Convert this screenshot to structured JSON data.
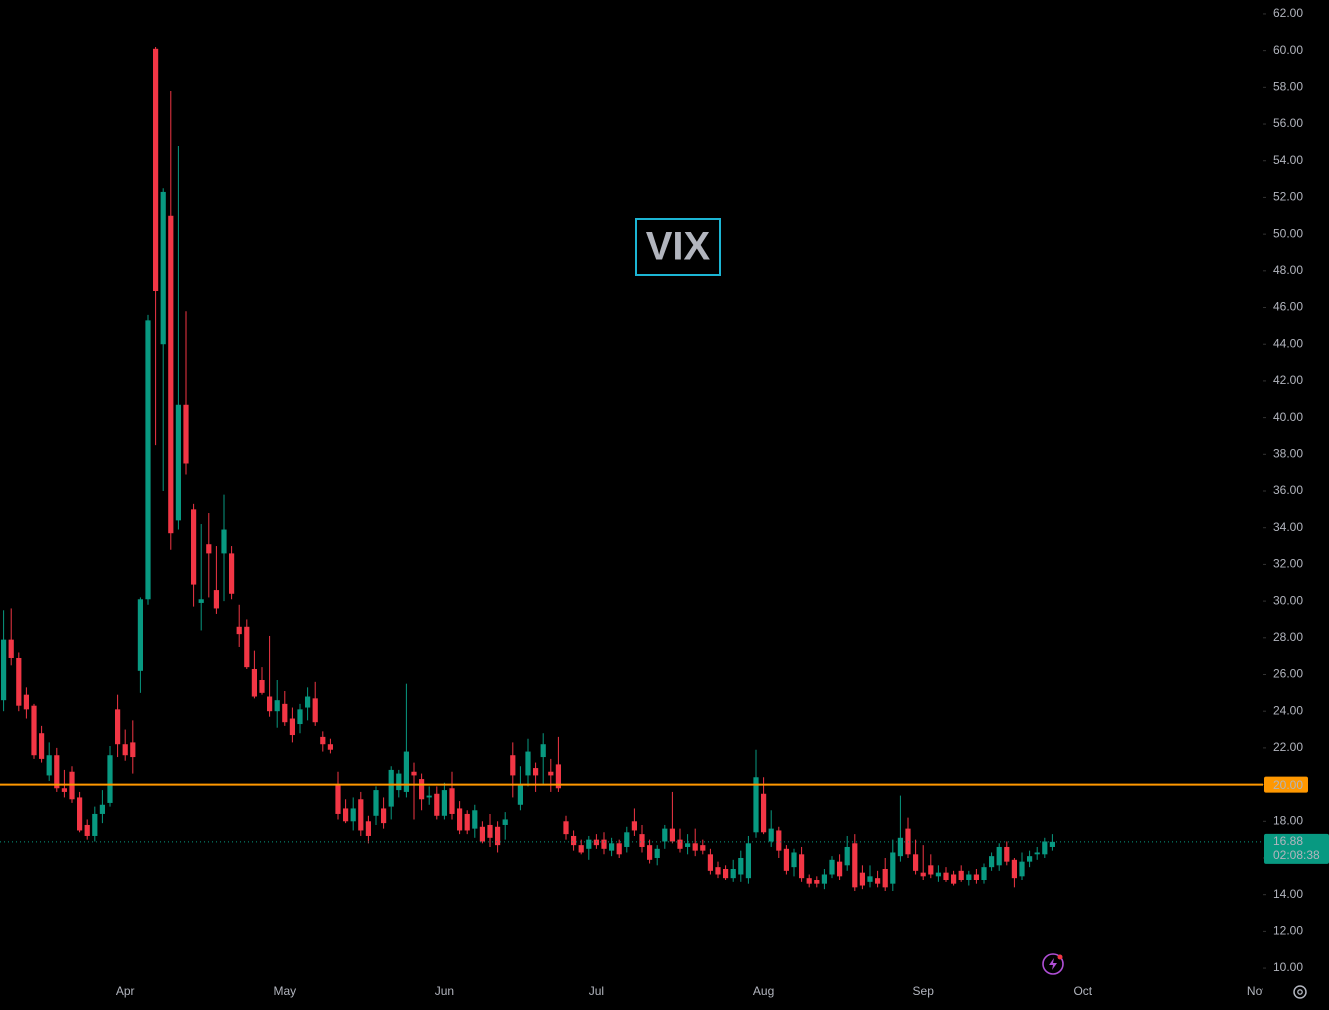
{
  "chart_data": {
    "type": "candlestick",
    "title": "VIX",
    "title_color": "#1cb5d4",
    "up_color": "#089981",
    "down_color": "#f23645",
    "categories": [
      null,
      null,
      null,
      null,
      null,
      null,
      null,
      null,
      null,
      null,
      null,
      null,
      null,
      null,
      null,
      null,
      null,
      "Apr",
      null,
      null,
      null,
      null,
      null,
      null,
      null,
      null,
      null,
      null,
      null,
      null,
      null,
      null,
      null,
      null,
      null,
      null,
      null,
      null,
      "May",
      null,
      null,
      null,
      null,
      null,
      null,
      null,
      null,
      null,
      null,
      null,
      null,
      null,
      null,
      null,
      null,
      null,
      null,
      null,
      null,
      "Jun",
      null,
      null,
      null,
      null,
      null,
      null,
      null,
      null,
      null,
      null,
      null,
      null,
      null,
      null,
      null,
      null,
      null,
      null,
      null,
      "Jul",
      null,
      null,
      null,
      null,
      null,
      null,
      null,
      null,
      null,
      null,
      null,
      null,
      null,
      null,
      null,
      null,
      null,
      null,
      null,
      null,
      null,
      "Aug",
      null,
      null,
      null,
      null,
      null,
      null,
      null,
      null,
      null,
      null,
      null,
      null,
      null,
      null,
      null,
      null,
      null,
      null,
      null,
      null,
      "Sep",
      null,
      null,
      null,
      null,
      null,
      null,
      null,
      null,
      null,
      null,
      null,
      null,
      null,
      null,
      null,
      null,
      null,
      null,
      null,
      null,
      "Oct",
      null,
      null,
      null,
      null,
      null,
      null,
      null,
      null,
      null,
      null,
      null,
      null,
      null,
      null,
      null,
      null,
      null,
      null,
      null,
      null,
      null,
      null,
      "Nov"
    ],
    "open": [
      24.9,
      24.6,
      27.9,
      26.9,
      24.9,
      24.3,
      22.8,
      20.5,
      21.6,
      19.8,
      20.7,
      19.3,
      17.8,
      17.2,
      18.4,
      19.0,
      24.1,
      22.2,
      22.3,
      26.2,
      30.1,
      60.1,
      44.0,
      51.0,
      34.4,
      40.7,
      35.0,
      29.9,
      33.1,
      30.6,
      32.6,
      32.6,
      28.6,
      28.6,
      26.3,
      25.7,
      24.8,
      24.0,
      24.4,
      23.6,
      23.3,
      24.2,
      24.7,
      22.6,
      22.2,
      20.0,
      18.7,
      18.0,
      19.2,
      18.0,
      18.3,
      18.7,
      18.8,
      19.7,
      19.6,
      20.7,
      20.3,
      19.3,
      19.5,
      18.3,
      19.8,
      18.7,
      18.4,
      17.6,
      17.7,
      17.8,
      17.7,
      17.8,
      21.6,
      18.9,
      20.5,
      20.9,
      21.5,
      20.7,
      21.1,
      18.0,
      17.2,
      16.7,
      16.5,
      17.0,
      17.0,
      16.4,
      16.8,
      16.6,
      18.0,
      17.3,
      16.7,
      16.0,
      16.9,
      17.6,
      17.0,
      16.6,
      16.8,
      16.7,
      16.2,
      15.5,
      15.4,
      14.9,
      15.1,
      14.9,
      17.4,
      19.5,
      16.9,
      17.5,
      16.5,
      15.5,
      16.2,
      14.9,
      14.8,
      14.6,
      15.1,
      15.8,
      15.6,
      16.8,
      15.2,
      14.7,
      14.9,
      15.4,
      14.6,
      16.1,
      17.6,
      16.2,
      15.2,
      15.6,
      15.0,
      15.2,
      15.1,
      15.3,
      14.8,
      15.1,
      14.8,
      15.5,
      15.6,
      16.6,
      15.9,
      15.0,
      15.8,
      16.2,
      16.2,
      16.6,
      null,
      null,
      null,
      null,
      null,
      null,
      null,
      null,
      null,
      null,
      null,
      null,
      null,
      null,
      null,
      null,
      null,
      null,
      null,
      null,
      null,
      null,
      null,
      null,
      null,
      null,
      null
    ],
    "high": [
      25.5,
      29.5,
      29.6,
      27.2,
      25.3,
      24.4,
      23.2,
      22.3,
      22.0,
      20.8,
      21.0,
      19.6,
      18.1,
      18.8,
      19.7,
      22.1,
      24.9,
      23.0,
      23.5,
      30.2,
      45.6,
      60.2,
      52.5,
      57.8,
      54.8,
      45.8,
      35.3,
      34.2,
      34.8,
      33.0,
      35.8,
      33.0,
      29.8,
      29.0,
      27.3,
      26.4,
      28.1,
      25.7,
      25.1,
      24.2,
      24.4,
      25.3,
      25.6,
      22.9,
      22.5,
      20.7,
      19.2,
      19.3,
      19.6,
      18.3,
      19.9,
      19.3,
      21.0,
      20.8,
      25.5,
      21.2,
      20.6,
      19.9,
      19.9,
      20.1,
      20.7,
      19.1,
      18.6,
      18.9,
      18.0,
      18.4,
      18.0,
      18.5,
      22.3,
      21.0,
      22.5,
      21.2,
      22.8,
      21.4,
      22.6,
      18.3,
      17.5,
      17.0,
      17.2,
      17.3,
      17.4,
      17.1,
      17.0,
      17.7,
      18.7,
      17.8,
      17.0,
      16.7,
      17.8,
      19.6,
      17.6,
      17.3,
      17.6,
      17.0,
      16.5,
      15.8,
      15.6,
      15.9,
      16.4,
      17.2,
      21.9,
      20.4,
      18.6,
      17.7,
      16.7,
      16.5,
      16.6,
      15.1,
      15.0,
      15.4,
      16.1,
      16.2,
      17.2,
      17.3,
      15.6,
      15.6,
      15.3,
      16.0,
      17.0,
      19.4,
      18.2,
      17.0,
      16.7,
      16.2,
      15.6,
      15.5,
      15.3,
      15.6,
      15.3,
      15.4,
      15.7,
      16.3,
      16.8,
      16.9,
      16.0,
      16.3,
      16.4,
      16.6,
      17.1,
      17.3,
      null,
      null,
      null,
      null,
      null,
      null,
      null,
      null,
      null,
      null,
      null,
      null,
      null,
      null,
      null,
      null,
      null,
      null,
      null,
      null,
      null,
      null,
      null,
      null,
      null,
      null,
      null
    ],
    "low": [
      23.0,
      24.0,
      26.5,
      24.0,
      23.6,
      21.4,
      21.2,
      20.2,
      19.6,
      19.3,
      19.0,
      17.4,
      17.0,
      16.9,
      17.9,
      18.8,
      21.5,
      21.3,
      20.6,
      25.0,
      29.8,
      38.5,
      36.0,
      32.8,
      33.9,
      36.9,
      29.7,
      28.4,
      30.2,
      29.3,
      30.0,
      30.1,
      27.5,
      26.3,
      24.7,
      24.9,
      23.7,
      23.1,
      23.2,
      22.3,
      22.8,
      23.5,
      23.2,
      21.8,
      21.7,
      18.1,
      17.9,
      17.5,
      17.2,
      16.8,
      17.8,
      17.6,
      18.1,
      19.3,
      19.3,
      18.1,
      18.6,
      18.9,
      18.1,
      18.1,
      18.1,
      17.3,
      17.3,
      17.1,
      16.8,
      16.6,
      16.3,
      17.0,
      19.3,
      18.6,
      19.9,
      19.6,
      20.0,
      19.6,
      19.6,
      17.0,
      16.4,
      16.2,
      15.9,
      16.5,
      16.2,
      16.1,
      16.0,
      16.3,
      17.2,
      16.3,
      15.7,
      15.6,
      16.5,
      16.8,
      16.3,
      16.2,
      16.1,
      16.2,
      15.1,
      14.9,
      14.8,
      14.7,
      14.7,
      14.6,
      17.1,
      17.3,
      16.6,
      16.0,
      15.1,
      15.0,
      14.7,
      14.4,
      14.4,
      14.3,
      14.9,
      14.8,
      15.3,
      14.2,
      14.3,
      14.4,
      14.4,
      14.2,
      14.2,
      15.8,
      16.0,
      15.1,
      14.8,
      14.9,
      14.7,
      14.7,
      14.5,
      14.7,
      14.5,
      14.6,
      14.6,
      15.3,
      15.3,
      15.6,
      14.4,
      14.8,
      15.5,
      15.9,
      16.0,
      16.4,
      null,
      null,
      null,
      null,
      null,
      null,
      null,
      null,
      null,
      null,
      null,
      null,
      null,
      null,
      null,
      null,
      null,
      null,
      null,
      null,
      null,
      null,
      null,
      null,
      null,
      null,
      null
    ],
    "close": [
      23.1,
      27.9,
      26.9,
      24.3,
      24.1,
      21.6,
      21.4,
      21.6,
      19.8,
      19.6,
      19.2,
      17.5,
      17.2,
      18.4,
      18.9,
      21.6,
      22.2,
      21.6,
      21.5,
      30.1,
      45.3,
      46.9,
      52.3,
      33.7,
      40.7,
      37.5,
      30.9,
      30.1,
      32.6,
      29.6,
      33.9,
      30.4,
      28.2,
      26.4,
      24.8,
      25.0,
      24.0,
      24.6,
      23.4,
      22.7,
      24.1,
      24.8,
      23.4,
      22.2,
      21.9,
      18.4,
      18.0,
      18.7,
      17.5,
      17.2,
      19.7,
      17.9,
      20.8,
      20.6,
      21.8,
      20.5,
      19.2,
      19.4,
      18.3,
      19.7,
      18.4,
      17.5,
      17.5,
      18.6,
      16.9,
      17.1,
      16.7,
      18.1,
      20.5,
      20.0,
      21.8,
      20.5,
      22.2,
      20.5,
      19.8,
      17.3,
      16.7,
      16.3,
      17.0,
      16.7,
      16.5,
      16.8,
      16.2,
      17.4,
      17.5,
      16.6,
      15.9,
      16.5,
      17.6,
      16.9,
      16.5,
      16.8,
      16.4,
      16.4,
      15.3,
      15.1,
      14.9,
      15.4,
      16.0,
      16.8,
      20.4,
      17.4,
      17.6,
      16.4,
      15.3,
      16.3,
      14.9,
      14.6,
      14.6,
      15.1,
      15.9,
      15.0,
      16.6,
      14.4,
      14.5,
      15.0,
      14.6,
      14.4,
      16.3,
      17.1,
      16.2,
      15.3,
      15.0,
      15.1,
      15.2,
      14.8,
      14.6,
      14.8,
      15.1,
      14.8,
      15.5,
      16.1,
      16.6,
      15.8,
      14.9,
      15.8,
      16.1,
      16.3,
      16.9,
      16.88,
      null,
      null,
      null,
      null,
      null,
      null,
      null,
      null,
      null,
      null,
      null,
      null,
      null,
      null,
      null,
      null,
      null,
      null,
      null,
      null,
      null,
      null,
      null,
      null,
      null,
      null,
      null
    ],
    "countdown": "02:08:38",
    "hline": {
      "value": 20,
      "label": "20.00",
      "color": "#ff9800"
    },
    "ylim": [
      9.35,
      62.76
    ],
    "yticks": [
      {
        "value": 10,
        "label": "10.00"
      },
      {
        "value": 12,
        "label": "12.00"
      },
      {
        "value": 14,
        "label": "14.00"
      },
      {
        "value": 16,
        "label": "16.00"
      },
      {
        "value": 18,
        "label": "18.00"
      },
      {
        "value": 20,
        "label": "20.00"
      },
      {
        "value": 22,
        "label": "22.00"
      },
      {
        "value": 24,
        "label": "24.00"
      },
      {
        "value": 26,
        "label": "26.00"
      },
      {
        "value": 28,
        "label": "28.00"
      },
      {
        "value": 30,
        "label": "30.00"
      },
      {
        "value": 32,
        "label": "32.00"
      },
      {
        "value": 34,
        "label": "34.00"
      },
      {
        "value": 36,
        "label": "36.00"
      },
      {
        "value": 38,
        "label": "38.00"
      },
      {
        "value": 40,
        "label": "40.00"
      },
      {
        "value": 42,
        "label": "42.00"
      },
      {
        "value": 44,
        "label": "44.00"
      },
      {
        "value": 46,
        "label": "46.00"
      },
      {
        "value": 48,
        "label": "48.00"
      },
      {
        "value": 50,
        "label": "50.00"
      },
      {
        "value": 52,
        "label": "52.00"
      },
      {
        "value": 54,
        "label": "54.00"
      },
      {
        "value": 56,
        "label": "56.00"
      },
      {
        "value": 58,
        "label": "58.00"
      },
      {
        "value": 60,
        "label": "60.00"
      },
      {
        "value": 62,
        "label": "62.00"
      }
    ],
    "grid": false
  }
}
